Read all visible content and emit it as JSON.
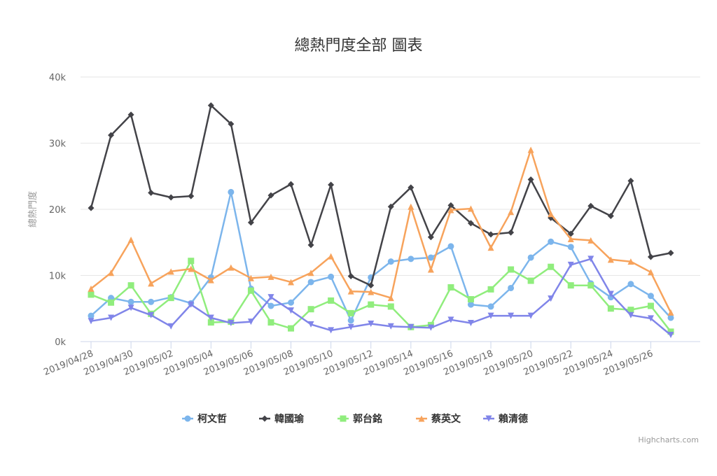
{
  "chart_data": {
    "type": "line",
    "title": "總熱門度全部 圖表",
    "ylabel": "總熱門度",
    "xlabel": "",
    "ylim": [
      0,
      40000
    ],
    "yticks": [
      {
        "value": 0,
        "label": "0k"
      },
      {
        "value": 10000,
        "label": "10k"
      },
      {
        "value": 20000,
        "label": "20k"
      },
      {
        "value": 30000,
        "label": "30k"
      },
      {
        "value": 40000,
        "label": "40k"
      }
    ],
    "categories": [
      "2019/04/28",
      "2019/04/29",
      "2019/04/30",
      "2019/05/01",
      "2019/05/02",
      "2019/05/03",
      "2019/05/04",
      "2019/05/05",
      "2019/05/06",
      "2019/05/07",
      "2019/05/08",
      "2019/05/09",
      "2019/05/10",
      "2019/05/11",
      "2019/05/12",
      "2019/05/13",
      "2019/05/14",
      "2019/05/15",
      "2019/05/16",
      "2019/05/17",
      "2019/05/18",
      "2019/05/19",
      "2019/05/20",
      "2019/05/21",
      "2019/05/22",
      "2019/05/23",
      "2019/05/24",
      "2019/05/25",
      "2019/05/26",
      "2019/05/27"
    ],
    "x_tick_labels": [
      "2019/04/28",
      "2019/04/30",
      "2019/05/02",
      "2019/05/04",
      "2019/05/06",
      "2019/05/08",
      "2019/05/10",
      "2019/05/12",
      "2019/05/14",
      "2019/05/16",
      "2019/05/18",
      "2019/05/20",
      "2019/05/22",
      "2019/05/24",
      "2019/05/26"
    ],
    "grid": true,
    "legend_position": "bottom",
    "series": [
      {
        "name": "柯文哲",
        "color": "#7cb5ec",
        "marker": "circle",
        "values": [
          3900,
          6600,
          6000,
          6000,
          6700,
          5800,
          9700,
          22600,
          8000,
          5400,
          5900,
          9000,
          9800,
          3200,
          9700,
          12100,
          12500,
          12700,
          14400,
          5600,
          5300,
          8100,
          12700,
          15100,
          14300,
          8800,
          6700,
          8700,
          6900,
          3600
        ]
      },
      {
        "name": "韓國瑜",
        "color": "#434348",
        "marker": "diamond",
        "values": [
          20200,
          31200,
          34300,
          22500,
          21800,
          22000,
          35700,
          32900,
          18000,
          22100,
          23800,
          14600,
          23700,
          9900,
          8500,
          20400,
          23300,
          15800,
          20600,
          17900,
          16200,
          16500,
          24500,
          18700,
          16300,
          20500,
          19000,
          24300,
          12800,
          13400
        ]
      },
      {
        "name": "郭台銘",
        "color": "#90ed7d",
        "marker": "square",
        "values": [
          7100,
          5900,
          8500,
          4200,
          6600,
          12200,
          2900,
          3000,
          7700,
          2900,
          2000,
          4900,
          6200,
          4300,
          5600,
          5300,
          2200,
          2500,
          8200,
          6400,
          7900,
          10900,
          9200,
          11300,
          8500,
          8500,
          5000,
          4800,
          5400,
          1500
        ]
      },
      {
        "name": "蔡英文",
        "color": "#f7a35c",
        "marker": "triangle",
        "values": [
          8000,
          10400,
          15400,
          8800,
          10600,
          11000,
          9300,
          11200,
          9600,
          9800,
          9000,
          10400,
          12900,
          7600,
          7500,
          6600,
          20400,
          10900,
          19900,
          20100,
          14200,
          19600,
          29000,
          19300,
          15500,
          15300,
          12400,
          12100,
          10500,
          4400
        ]
      },
      {
        "name": "賴清德",
        "color": "#8085e9",
        "marker": "triangle-down",
        "values": [
          3100,
          3600,
          5100,
          4000,
          2300,
          5600,
          3600,
          2800,
          3000,
          6700,
          4700,
          2600,
          1700,
          2200,
          2700,
          2300,
          2200,
          2100,
          3300,
          2800,
          3900,
          3900,
          3900,
          6500,
          11600,
          12500,
          7200,
          4000,
          3500,
          1000
        ]
      }
    ],
    "credits": "Highcharts.com"
  }
}
